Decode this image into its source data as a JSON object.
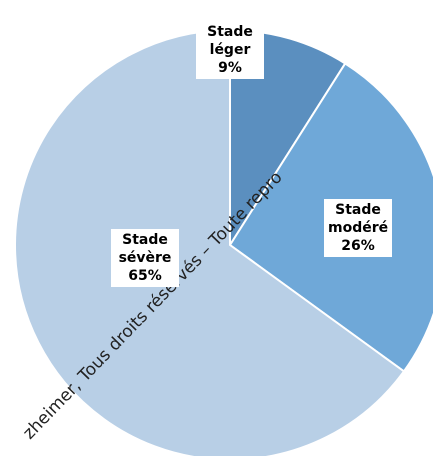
{
  "chart_data": {
    "type": "pie",
    "categories": [
      "Stade léger",
      "Stade modéré",
      "Stade sévère"
    ],
    "values": [
      9,
      26,
      65
    ],
    "value_labels": [
      "9%",
      "26%",
      "65%"
    ],
    "colors": [
      "#5b8fbf",
      "#6fa8d8",
      "#b8cfe6"
    ],
    "watermark": "zheimer, Tous droits réservés – Toute repro"
  }
}
